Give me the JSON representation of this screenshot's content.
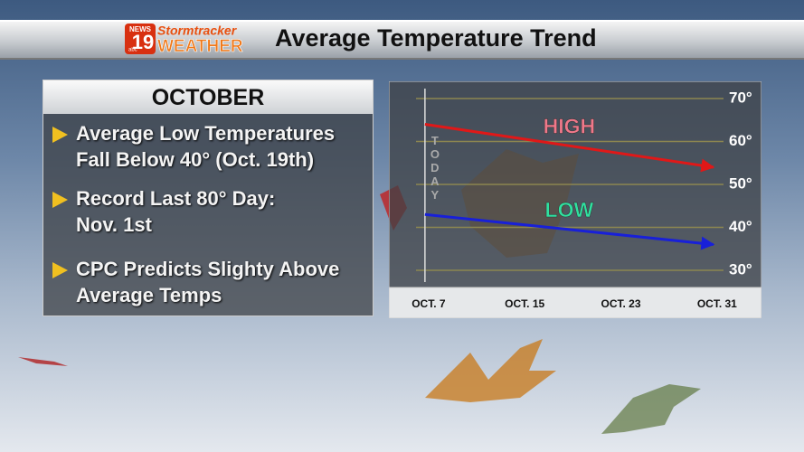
{
  "header": {
    "logo_news": "NEWS",
    "logo_number": "19",
    "logo_abc": "abc",
    "logo_storm": "Stormtracker",
    "logo_weather": "WEATHER",
    "title": "Average Temperature Trend"
  },
  "panel": {
    "title": "OCTOBER",
    "items": [
      [
        "Average Low Temperatures",
        "Fall Below 40° (Oct. 19th)"
      ],
      [
        "Record Last 80° Day:",
        "Nov. 1st"
      ],
      [
        "CPC Predicts Slighty Above",
        "Average Temps"
      ]
    ]
  },
  "chart_data": {
    "type": "line",
    "x": [
      7,
      31
    ],
    "xlim": [
      4,
      35
    ],
    "xticks": [
      {
        "value": 7,
        "label": "OCT. 7"
      },
      {
        "value": 15,
        "label": "OCT. 15"
      },
      {
        "value": 23,
        "label": "OCT. 23"
      },
      {
        "value": 31,
        "label": "OCT. 31"
      }
    ],
    "ylim": [
      26,
      74
    ],
    "yticks": [
      {
        "value": 30,
        "label": "30°"
      },
      {
        "value": 40,
        "label": "40°"
      },
      {
        "value": 50,
        "label": "50°"
      },
      {
        "value": 60,
        "label": "60°"
      },
      {
        "value": 70,
        "label": "70°"
      }
    ],
    "grid": true,
    "today": {
      "x": 7,
      "label": "TODAY"
    },
    "series": [
      {
        "name": "HIGH",
        "color": "#e01818",
        "label_color": "#f0788a",
        "values": [
          64,
          54
        ]
      },
      {
        "name": "LOW",
        "color": "#1820d8",
        "label_color": "#30e0a0",
        "values": [
          43,
          36
        ]
      }
    ]
  }
}
